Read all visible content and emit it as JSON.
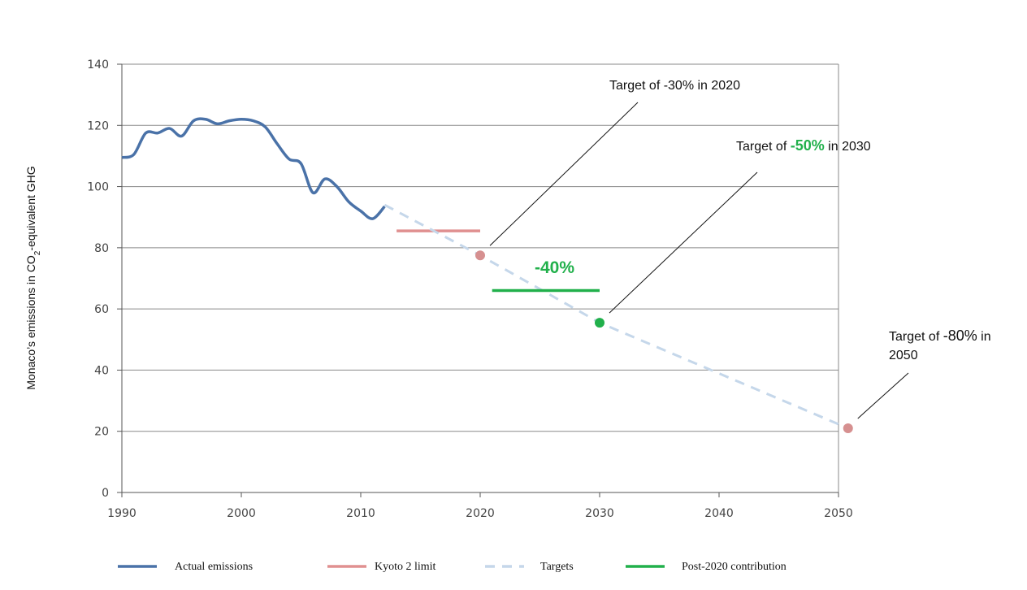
{
  "chart_data": {
    "type": "line",
    "ylabel_main": "Monaco’s emissions in CO",
    "ylabel_sub": "2",
    "ylabel_rest": "-equivalent GHG",
    "xlim": [
      1990,
      2050
    ],
    "ylim": [
      0,
      140
    ],
    "x_ticks": [
      1990,
      2000,
      2010,
      2020,
      2030,
      2040,
      2050
    ],
    "y_ticks": [
      0,
      20,
      40,
      60,
      80,
      100,
      120,
      140
    ],
    "grid": "horizontal",
    "legend_position": "bottom",
    "series": [
      {
        "name": "Actual emissions",
        "color": "#4a72a8",
        "style": "solid",
        "x": [
          1990,
          1991,
          1992,
          1993,
          1994,
          1995,
          1996,
          1997,
          1998,
          1999,
          2000,
          2001,
          2002,
          2003,
          2004,
          2005,
          2006,
          2007,
          2008,
          2009,
          2010,
          2011,
          2012
        ],
        "y": [
          109.5,
          110.5,
          117.5,
          117.5,
          119,
          116.5,
          121.5,
          122,
          120.5,
          121.5,
          122,
          121.5,
          119.5,
          114,
          109,
          107.5,
          98,
          102.5,
          100,
          95,
          92,
          89.5,
          93.5
        ]
      },
      {
        "name": "Kyoto 2 limit",
        "color": "#e09090",
        "style": "solid",
        "x": [
          2013,
          2020
        ],
        "y": [
          85.5,
          85.5
        ]
      },
      {
        "name": "Targets",
        "color": "#c5d7ea",
        "style": "dashed",
        "x": [
          2012,
          2020,
          2030,
          2050.8
        ],
        "y": [
          94,
          77.5,
          55.5,
          21
        ]
      },
      {
        "name": "Post-2020 contribution",
        "color": "#21b04b",
        "style": "solid",
        "x": [
          2021,
          2030
        ],
        "y": [
          66,
          66
        ]
      }
    ],
    "target_points": [
      {
        "x": 2020,
        "y": 77.5,
        "color": "#d69090"
      },
      {
        "x": 2030,
        "y": 55.5,
        "color": "#21b04b"
      },
      {
        "x": 2050.8,
        "y": 21,
        "color": "#d69090"
      }
    ],
    "annotations": {
      "t2020_text": "Target of -30% in 2020",
      "t2030_pre": "Target of ",
      "t2030_pct": "-50%",
      "t2030_post": " in 2030",
      "t2050_pre": "Target of ",
      "t2050_pct": "-80%",
      "t2050_post": " in",
      "t2050_year": "2050",
      "mid_label": "-40%"
    }
  }
}
